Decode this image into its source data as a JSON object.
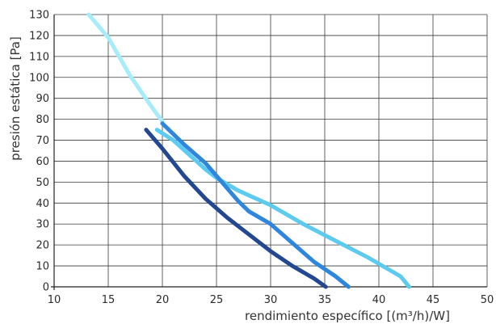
{
  "chart_data": {
    "type": "line",
    "title": "",
    "xlabel": "rendimiento específico [(m³/h)/W]",
    "ylabel": "presión estática [Pa]",
    "xlim": [
      10,
      50
    ],
    "ylim": [
      0,
      130
    ],
    "xticks": [
      10,
      15,
      20,
      25,
      30,
      35,
      40,
      45,
      50
    ],
    "yticks": [
      0,
      10,
      20,
      30,
      40,
      50,
      60,
      70,
      80,
      90,
      100,
      110,
      120,
      130
    ],
    "grid": true,
    "legend": "none",
    "series": [
      {
        "color": "#a6ecfa",
        "points": [
          [
            13.2,
            130
          ],
          [
            15,
            119
          ],
          [
            17,
            101
          ],
          [
            19,
            86
          ],
          [
            20,
            79
          ]
        ]
      },
      {
        "color": "#5ccbef",
        "points": [
          [
            19.5,
            75
          ],
          [
            21,
            70
          ],
          [
            22.5,
            63
          ],
          [
            24,
            56
          ],
          [
            25,
            52
          ],
          [
            27,
            46
          ],
          [
            30,
            39
          ],
          [
            33,
            30
          ],
          [
            36,
            22
          ],
          [
            39,
            14
          ],
          [
            42,
            5
          ],
          [
            42.8,
            0
          ]
        ]
      },
      {
        "color": "#2e86de",
        "points": [
          [
            20,
            78
          ],
          [
            21,
            73
          ],
          [
            22,
            68
          ],
          [
            24,
            59
          ],
          [
            25,
            53
          ],
          [
            26,
            47
          ],
          [
            27,
            41
          ],
          [
            28,
            36
          ],
          [
            30,
            30
          ],
          [
            32,
            21
          ],
          [
            34,
            12
          ],
          [
            36,
            5
          ],
          [
            37.2,
            0
          ]
        ]
      },
      {
        "color": "#234891",
        "points": [
          [
            18.5,
            75
          ],
          [
            20,
            66
          ],
          [
            22,
            53
          ],
          [
            24,
            42
          ],
          [
            26,
            33
          ],
          [
            28,
            25
          ],
          [
            30,
            17
          ],
          [
            32,
            10
          ],
          [
            34,
            4
          ],
          [
            35.1,
            0
          ]
        ]
      }
    ]
  }
}
